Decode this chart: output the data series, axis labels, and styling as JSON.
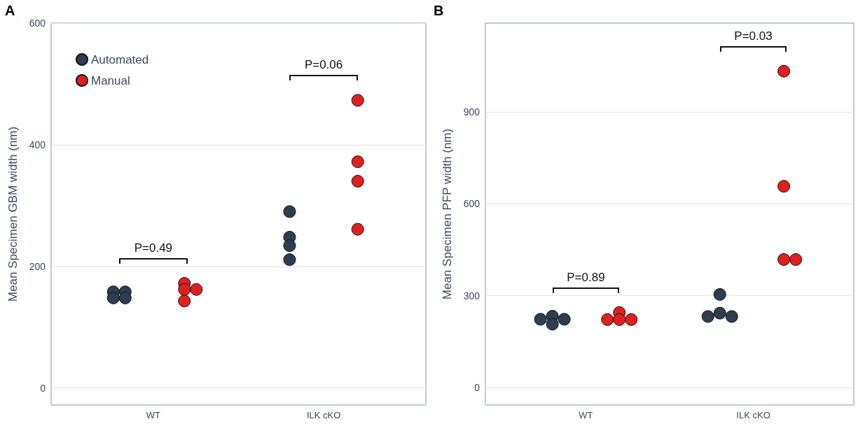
{
  "chart_data": [
    {
      "type": "scatter",
      "title": "A",
      "categories": [
        "WT",
        "ILK cKO"
      ],
      "ylabel": "Mean Specimen GBM width (nm)",
      "ylim": [
        -28,
        600
      ],
      "yticks": [
        0,
        200,
        400,
        600
      ],
      "grid": true,
      "legend": "top left",
      "marker": "circle",
      "annotations": [
        "P=0.49",
        "P=0.06"
      ],
      "series": [
        {
          "name": "Automated",
          "color": "#2e3d4f",
          "x": [
            "WT",
            "WT",
            "WT",
            "WT",
            "ILK cKO",
            "ILK cKO",
            "ILK cKO",
            "ILK cKO"
          ],
          "values": [
            158,
            158,
            148,
            148,
            290,
            248,
            234,
            211
          ]
        },
        {
          "name": "Manual",
          "color": "#e02020",
          "x": [
            "WT",
            "WT",
            "WT",
            "WT",
            "ILK cKO",
            "ILK cKO",
            "ILK cKO",
            "ILK cKO"
          ],
          "values": [
            172,
            162,
            162,
            143,
            473,
            372,
            340,
            261
          ]
        }
      ]
    },
    {
      "type": "scatter",
      "title": "B",
      "categories": [
        "WT",
        "ILK cKO"
      ],
      "ylabel": "Mean Specimen PFP width (nm)",
      "ylim": [
        -57,
        1190
      ],
      "yticks": [
        0,
        300,
        600,
        900
      ],
      "grid": true,
      "marker": "circle",
      "annotations": [
        "P=0.89",
        "P=0.03"
      ],
      "series": [
        {
          "color": "#2e3d4f",
          "x": [
            "WT",
            "WT",
            "WT",
            "WT",
            "ILK cKO",
            "ILK cKO",
            "ILK cKO",
            "ILK cKO"
          ],
          "values": [
            233,
            223,
            223,
            207,
            304,
            243,
            232,
            232
          ]
        },
        {
          "color": "#e02020",
          "x": [
            "WT",
            "WT",
            "WT",
            "WT",
            "ILK cKO",
            "ILK cKO",
            "ILK cKO",
            "ILK cKO"
          ],
          "values": [
            245,
            222,
            222,
            222,
            1033,
            657,
            418,
            418
          ]
        }
      ]
    }
  ]
}
